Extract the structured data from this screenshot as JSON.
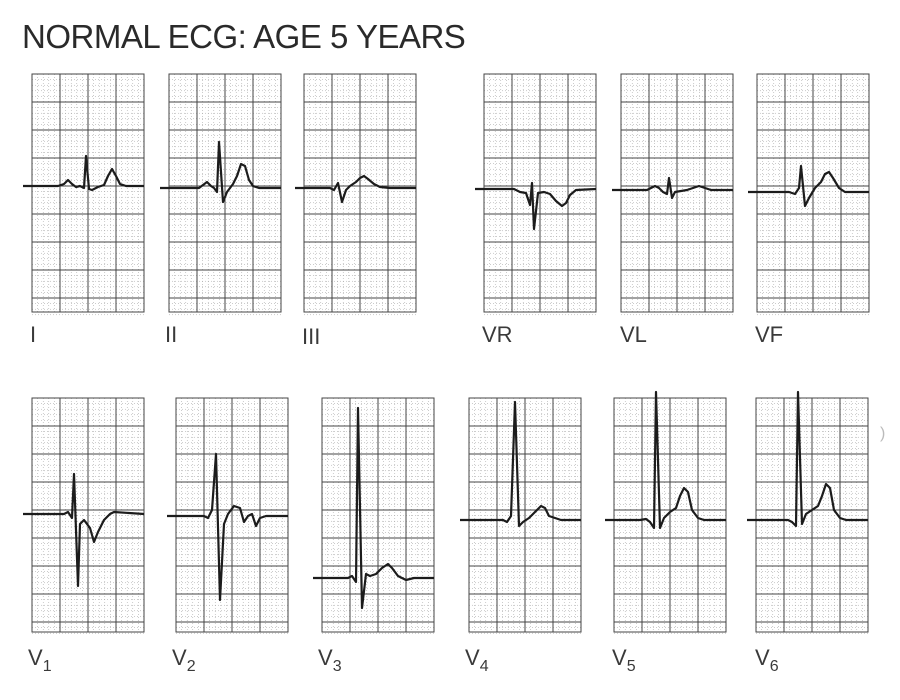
{
  "title": "NORMAL ECG: AGE 5 YEARS",
  "colors": {
    "grid_major": "#444444",
    "grid_minor": "#9a9a9a",
    "trace": "#1c1c1c"
  },
  "leads": [
    {
      "id": "I",
      "label": "I",
      "sub": ""
    },
    {
      "id": "II",
      "label": "II",
      "sub": ""
    },
    {
      "id": "III",
      "label": "III",
      "sub": ""
    },
    {
      "id": "VR",
      "label": "VR",
      "sub": ""
    },
    {
      "id": "VL",
      "label": "VL",
      "sub": ""
    },
    {
      "id": "VF",
      "label": "VF",
      "sub": ""
    },
    {
      "id": "V1",
      "label": "V",
      "sub": "1"
    },
    {
      "id": "V2",
      "label": "V",
      "sub": "2"
    },
    {
      "id": "V3",
      "label": "V",
      "sub": "3"
    },
    {
      "id": "V4",
      "label": "V",
      "sub": "4"
    },
    {
      "id": "V5",
      "label": "V",
      "sub": "5"
    },
    {
      "id": "V6",
      "label": "V",
      "sub": "6"
    }
  ]
}
